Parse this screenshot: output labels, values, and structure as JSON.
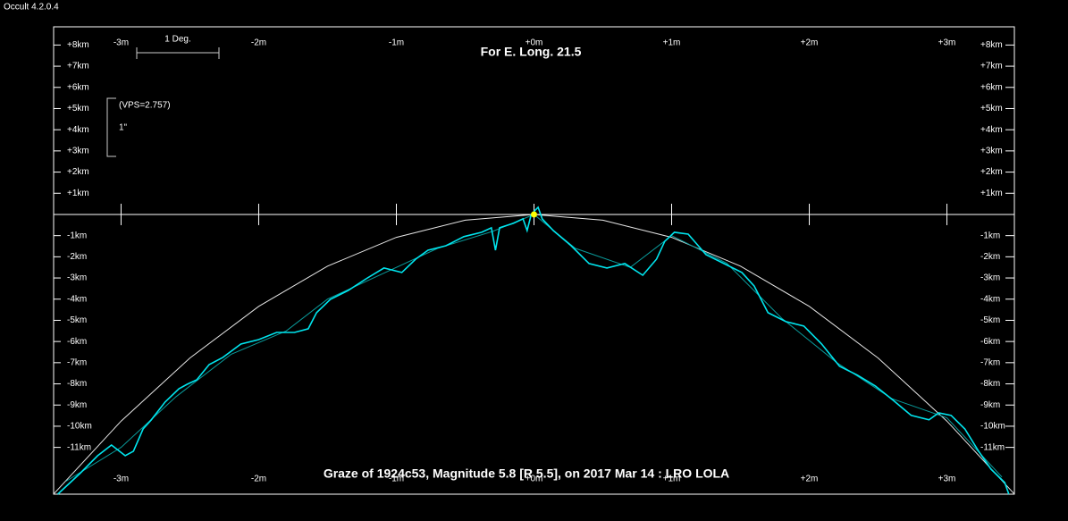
{
  "app_title": "Occult 4.2.0.4",
  "chart_data": {
    "type": "line",
    "title": "Graze of  1924c53,  Magnitude 5.8 [R 5.5],  on 2017 Mar 14 :  LRO LOLA",
    "subtitle": "For E. Long. 21.5",
    "scale_label": "1 Deg.",
    "vps_label": "(VPS=2.757)",
    "arcsec_label": "1\"",
    "xlim": [
      -3.49,
      3.49
    ],
    "ylim": [
      -13.21,
      8.86
    ],
    "xticks": [
      {
        "value": -3,
        "label": "-3m"
      },
      {
        "value": -2,
        "label": "-2m"
      },
      {
        "value": -1,
        "label": "-1m"
      },
      {
        "value": 0,
        "label": "+0m"
      },
      {
        "value": 1,
        "label": "+1m"
      },
      {
        "value": 2,
        "label": "+2m"
      },
      {
        "value": 3,
        "label": "+3m"
      }
    ],
    "yticks": [
      {
        "value": 8,
        "label": "+8km"
      },
      {
        "value": 7,
        "label": "+7km"
      },
      {
        "value": 6,
        "label": "+6km"
      },
      {
        "value": 5,
        "label": "+5km"
      },
      {
        "value": 4,
        "label": "+4km"
      },
      {
        "value": 3,
        "label": "+3km"
      },
      {
        "value": 2,
        "label": "+2km"
      },
      {
        "value": 1,
        "label": "+1km"
      },
      {
        "value": -1,
        "label": "-1km"
      },
      {
        "value": -2,
        "label": "-2km"
      },
      {
        "value": -3,
        "label": "-3km"
      },
      {
        "value": -4,
        "label": "-4km"
      },
      {
        "value": -5,
        "label": "-5km"
      },
      {
        "value": -6,
        "label": "-6km"
      },
      {
        "value": -7,
        "label": "-7km"
      },
      {
        "value": -8,
        "label": "-8km"
      },
      {
        "value": -9,
        "label": "-9km"
      },
      {
        "value": -10,
        "label": "-10km"
      },
      {
        "value": -11,
        "label": "-11km"
      }
    ],
    "series": [
      {
        "color": "#e6e6e6",
        "x": [
          -3.49,
          -3.0,
          -2.5,
          -2.0,
          -1.5,
          -1.0,
          -0.5,
          0,
          0.5,
          1.0,
          1.5,
          2.0,
          2.5,
          3.0,
          3.49
        ],
        "values": [
          -13.2,
          -9.76,
          -6.78,
          -4.34,
          -2.44,
          -1.08,
          -0.27,
          0,
          -0.27,
          -1.08,
          -2.44,
          -4.34,
          -6.78,
          -9.76,
          -13.2
        ]
      },
      {
        "color": "#0a9a9a",
        "x": [
          -3.4,
          -3.0,
          -2.6,
          -2.2,
          -1.8,
          -1.5,
          -1.1,
          -0.7,
          -0.3,
          0,
          0.3,
          0.7,
          1.0,
          1.4,
          1.8,
          2.2,
          2.6,
          3.0,
          3.4
        ],
        "values": [
          -12.6,
          -11.0,
          -8.6,
          -6.6,
          -5.5,
          -4.0,
          -2.8,
          -1.6,
          -0.8,
          0,
          -1.6,
          -2.5,
          -1.0,
          -2.3,
          -4.9,
          -7.0,
          -8.7,
          -9.6,
          -12.4
        ]
      },
      {
        "color": "#00e5ee",
        "x": [
          -3.46,
          -3.3,
          -3.17,
          -3.07,
          -2.97,
          -2.91,
          -2.84,
          -2.78,
          -2.68,
          -2.58,
          -2.52,
          -2.45,
          -2.36,
          -2.26,
          -2.13,
          -2.0,
          -1.87,
          -1.74,
          -1.64,
          -1.58,
          -1.48,
          -1.35,
          -1.22,
          -1.09,
          -0.96,
          -0.86,
          -0.77,
          -0.64,
          -0.51,
          -0.38,
          -0.31,
          -0.28,
          -0.25,
          -0.15,
          -0.08,
          -0.05,
          -0.02,
          0.01,
          0.03,
          0.06,
          0.14,
          0.27,
          0.4,
          0.53,
          0.66,
          0.79,
          0.89,
          0.95,
          1.02,
          1.12,
          1.25,
          1.38,
          1.51,
          1.6,
          1.7,
          1.83,
          1.96,
          2.09,
          2.22,
          2.35,
          2.48,
          2.61,
          2.74,
          2.87,
          2.94,
          3.03,
          3.13,
          3.23,
          3.32,
          3.42,
          3.45
        ],
        "values": [
          -13.21,
          -12.24,
          -11.39,
          -10.89,
          -11.39,
          -11.18,
          -10.13,
          -9.7,
          -8.86,
          -8.23,
          -8.02,
          -7.81,
          -7.09,
          -6.75,
          -6.12,
          -5.91,
          -5.57,
          -5.57,
          -5.4,
          -4.64,
          -4.01,
          -3.59,
          -3.04,
          -2.53,
          -2.74,
          -2.11,
          -1.69,
          -1.48,
          -1.05,
          -0.84,
          -0.63,
          -1.69,
          -0.63,
          -0.42,
          -0.21,
          -0.76,
          0,
          0.21,
          0.34,
          -0.21,
          -0.76,
          -1.48,
          -2.32,
          -2.53,
          -2.32,
          -2.87,
          -2.11,
          -1.27,
          -0.84,
          -0.93,
          -1.9,
          -2.32,
          -2.74,
          -3.38,
          -4.64,
          -5.06,
          -5.27,
          -6.12,
          -7.17,
          -7.59,
          -8.1,
          -8.78,
          -9.49,
          -9.7,
          -9.37,
          -9.49,
          -10.13,
          -11.18,
          -12.03,
          -12.66,
          -13.21
        ]
      }
    ],
    "marker": {
      "x": 0,
      "y": 0,
      "color": "#ffff00"
    }
  }
}
